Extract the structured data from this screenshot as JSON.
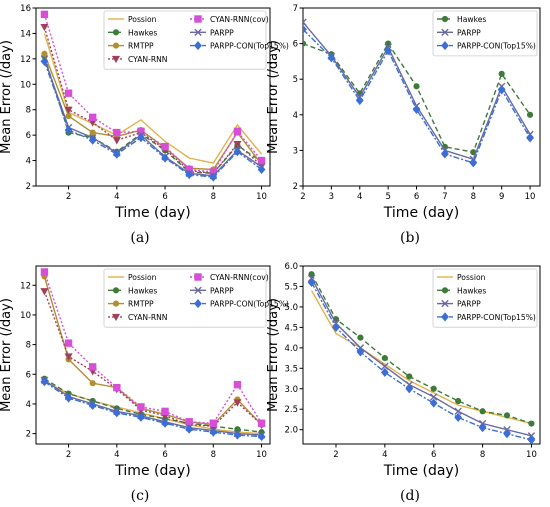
{
  "chart_data": [
    {
      "id": "a",
      "panel_label": "(a)",
      "type": "line",
      "xlabel": "Time (day)",
      "ylabel": "Mean Error (/day)",
      "xlim": [
        0.65,
        10.35
      ],
      "ylim": [
        2,
        16
      ],
      "xticks": [
        2,
        4,
        6,
        8,
        10
      ],
      "yticks": [
        2,
        4,
        6,
        8,
        10,
        12,
        14,
        16
      ],
      "legend_position": "top-right",
      "legend_columns": 2,
      "x": [
        1,
        2,
        3,
        4,
        5,
        6,
        7,
        8,
        9,
        10
      ],
      "series": [
        {
          "name": "Possion",
          "color": "#E3B24A",
          "marker": "none",
          "dash": "",
          "values": [
            14.0,
            7.8,
            6.9,
            6.0,
            7.2,
            5.5,
            4.2,
            3.8,
            6.8,
            4.5
          ]
        },
        {
          "name": "Hawkes",
          "color": "#3E7A3A",
          "marker": "circle",
          "dash": "5,3",
          "values": [
            12.2,
            6.2,
            5.8,
            4.7,
            6.1,
            4.8,
            3.1,
            3.0,
            5.2,
            3.9
          ]
        },
        {
          "name": "RMTPP",
          "color": "#B09030",
          "marker": "circle",
          "dash": "",
          "values": [
            12.4,
            7.5,
            6.2,
            5.9,
            6.4,
            5.0,
            3.4,
            3.3,
            6.2,
            3.7
          ]
        },
        {
          "name": "CYAN-RNN",
          "color": "#A0405A",
          "marker": "triangle-down",
          "dash": "2,2",
          "values": [
            14.5,
            8.0,
            7.0,
            5.6,
            6.2,
            4.9,
            3.2,
            3.0,
            5.3,
            3.6
          ]
        },
        {
          "name": "CYAN-RNN(cov)",
          "color": "#D64FD6",
          "marker": "square",
          "dash": "2,2",
          "values": [
            15.5,
            9.3,
            7.4,
            6.2,
            6.3,
            5.1,
            3.3,
            3.1,
            6.3,
            4.0
          ]
        },
        {
          "name": "PARPP",
          "color": "#6A6AA0",
          "marker": "x",
          "dash": "",
          "values": [
            12.0,
            6.6,
            5.8,
            4.6,
            6.0,
            4.3,
            3.0,
            2.8,
            4.8,
            3.5
          ]
        },
        {
          "name": "PARPP-CON(Top15%)",
          "color": "#3B6FD6",
          "marker": "diamond",
          "dash": "6,2,2,2",
          "values": [
            11.8,
            6.4,
            5.6,
            4.5,
            5.8,
            4.2,
            2.9,
            2.7,
            4.7,
            3.3
          ]
        }
      ]
    },
    {
      "id": "b",
      "panel_label": "(b)",
      "type": "line",
      "xlabel": "Time (day)",
      "ylabel": "Mean Error (/day)",
      "xlim": [
        2,
        10.35
      ],
      "ylim": [
        2,
        7
      ],
      "xticks": [
        2,
        3,
        4,
        5,
        6,
        7,
        8,
        9,
        10
      ],
      "yticks": [
        2,
        3,
        4,
        5,
        6,
        7
      ],
      "legend_position": "top-right",
      "legend_columns": 1,
      "x": [
        2,
        3,
        4,
        5,
        6,
        7,
        8,
        9,
        10
      ],
      "series": [
        {
          "name": "Hawkes",
          "color": "#3E7A3A",
          "marker": "circle",
          "dash": "5,3",
          "values": [
            6.0,
            5.7,
            4.6,
            6.0,
            4.8,
            3.1,
            2.95,
            5.15,
            4.0
          ]
        },
        {
          "name": "PARPP",
          "color": "#6A6AA0",
          "marker": "x",
          "dash": "",
          "values": [
            6.6,
            5.65,
            4.5,
            5.9,
            4.25,
            3.0,
            2.75,
            4.8,
            3.45
          ]
        },
        {
          "name": "PARPP-CON(Top15%)",
          "color": "#3B6FD6",
          "marker": "diamond",
          "dash": "6,2,2,2",
          "values": [
            6.4,
            5.6,
            4.4,
            5.8,
            4.15,
            2.9,
            2.65,
            4.7,
            3.35
          ]
        }
      ]
    },
    {
      "id": "c",
      "panel_label": "(c)",
      "type": "line",
      "xlabel": "Time (day)",
      "ylabel": "Mean Error (/day)",
      "xlim": [
        0.65,
        10.35
      ],
      "ylim": [
        1.3,
        13.3
      ],
      "xticks": [
        2,
        4,
        6,
        8,
        10
      ],
      "yticks": [
        2,
        4,
        6,
        8,
        10,
        12
      ],
      "legend_position": "top-right",
      "legend_columns": 2,
      "x": [
        1,
        2,
        3,
        4,
        5,
        6,
        7,
        8,
        9,
        10
      ],
      "series": [
        {
          "name": "Possion",
          "color": "#E3B24A",
          "marker": "none",
          "dash": "",
          "values": [
            5.5,
            4.7,
            4.2,
            3.8,
            3.4,
            3.0,
            2.6,
            2.3,
            2.1,
            2.0
          ]
        },
        {
          "name": "Hawkes",
          "color": "#3E7A3A",
          "marker": "circle",
          "dash": "5,3",
          "values": [
            5.7,
            4.7,
            4.2,
            3.7,
            3.3,
            3.0,
            2.7,
            2.5,
            2.3,
            2.1
          ]
        },
        {
          "name": "RMTPP",
          "color": "#B09030",
          "marker": "circle",
          "dash": "",
          "values": [
            12.6,
            7.0,
            5.4,
            5.1,
            3.7,
            3.3,
            2.8,
            2.6,
            4.3,
            2.6
          ]
        },
        {
          "name": "CYAN-RNN",
          "color": "#A0405A",
          "marker": "triangle-down",
          "dash": "2,2",
          "values": [
            11.6,
            7.2,
            6.2,
            5.0,
            3.6,
            3.2,
            2.6,
            2.5,
            4.1,
            2.6
          ]
        },
        {
          "name": "CYAN-RNN(cov)",
          "color": "#D64FD6",
          "marker": "square",
          "dash": "2,2",
          "values": [
            12.9,
            8.1,
            6.5,
            5.1,
            3.8,
            3.5,
            2.8,
            2.7,
            5.3,
            2.7
          ]
        },
        {
          "name": "PARPP",
          "color": "#6A6AA0",
          "marker": "x",
          "dash": "",
          "values": [
            5.6,
            4.5,
            4.0,
            3.5,
            3.2,
            2.8,
            2.4,
            2.2,
            2.0,
            1.9
          ]
        },
        {
          "name": "PARPP-CON(Top15%)",
          "color": "#3B6FD6",
          "marker": "diamond",
          "dash": "6,2,2,2",
          "values": [
            5.5,
            4.4,
            3.9,
            3.4,
            3.1,
            2.7,
            2.3,
            2.1,
            1.9,
            1.8
          ]
        }
      ]
    },
    {
      "id": "d",
      "panel_label": "(d)",
      "type": "line",
      "xlabel": "Time (day)",
      "ylabel": "Mean Error (/day)",
      "xlim": [
        0.65,
        10.35
      ],
      "ylim": [
        1.65,
        6.0
      ],
      "xticks": [
        2,
        4,
        6,
        8,
        10
      ],
      "yticks": [
        2.0,
        2.5,
        3.0,
        3.5,
        4.0,
        4.5,
        5.0,
        5.5,
        6.0
      ],
      "ytick_labels": [
        "2.0",
        "2.5",
        "3.0",
        "3.5",
        "4.0",
        "4.5",
        "5.0",
        "5.5",
        "6.0"
      ],
      "legend_position": "top-right",
      "legend_columns": 1,
      "x": [
        1,
        2,
        3,
        4,
        5,
        6,
        7,
        8,
        9,
        10
      ],
      "series": [
        {
          "name": "Possion",
          "color": "#E3B24A",
          "marker": "none",
          "dash": "",
          "values": [
            5.4,
            4.35,
            4.0,
            3.6,
            3.2,
            2.9,
            2.6,
            2.45,
            2.3,
            2.15
          ]
        },
        {
          "name": "Hawkes",
          "color": "#3E7A3A",
          "marker": "circle",
          "dash": "5,3",
          "values": [
            5.8,
            4.7,
            4.25,
            3.75,
            3.3,
            3.0,
            2.7,
            2.45,
            2.35,
            2.15
          ]
        },
        {
          "name": "PARPP",
          "color": "#6A6AA0",
          "marker": "x",
          "dash": "",
          "values": [
            5.7,
            4.6,
            4.0,
            3.55,
            3.1,
            2.8,
            2.45,
            2.15,
            2.0,
            1.85
          ]
        },
        {
          "name": "PARPP-CON(Top15%)",
          "color": "#3B6FD6",
          "marker": "diamond",
          "dash": "6,2,2,2",
          "values": [
            5.6,
            4.5,
            3.9,
            3.4,
            3.0,
            2.65,
            2.3,
            2.05,
            1.9,
            1.75
          ]
        }
      ]
    }
  ]
}
